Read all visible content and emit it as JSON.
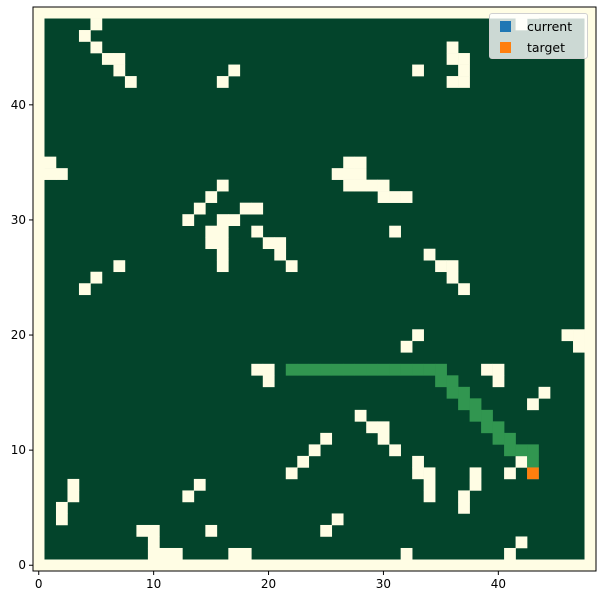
{
  "colors": {
    "background": "#03442b",
    "obstacle": "#fffde4",
    "path": "#319650",
    "current": "#1f77b4",
    "target": "#ff7f0e"
  },
  "legend": {
    "current_label": "current",
    "target_label": "target",
    "placement": "upper-right"
  },
  "chart_data": {
    "type": "heatmap",
    "grid_size": [
      49,
      49
    ],
    "xlim": [
      -0.5,
      48.5
    ],
    "ylim": [
      -0.5,
      48.5
    ],
    "xticks": [
      0,
      10,
      20,
      30,
      40
    ],
    "yticks": [
      0,
      10,
      20,
      30,
      40
    ],
    "obstacles": [
      [
        5,
        47
      ],
      [
        4,
        46
      ],
      [
        5,
        45
      ],
      [
        6,
        44
      ],
      [
        7,
        44
      ],
      [
        7,
        43
      ],
      [
        8,
        42
      ],
      [
        16,
        42
      ],
      [
        17,
        43
      ],
      [
        33,
        43
      ],
      [
        36,
        45
      ],
      [
        36,
        44
      ],
      [
        37,
        44
      ],
      [
        37,
        43
      ],
      [
        36,
        42
      ],
      [
        37,
        42
      ],
      [
        43,
        48
      ],
      [
        42,
        47
      ],
      [
        0,
        35
      ],
      [
        1,
        35
      ],
      [
        0,
        34
      ],
      [
        1,
        34
      ],
      [
        2,
        34
      ],
      [
        27,
        35
      ],
      [
        28,
        35
      ],
      [
        26,
        34
      ],
      [
        27,
        34
      ],
      [
        28,
        34
      ],
      [
        27,
        33
      ],
      [
        28,
        33
      ],
      [
        29,
        33
      ],
      [
        30,
        33
      ],
      [
        30,
        32
      ],
      [
        31,
        32
      ],
      [
        32,
        32
      ],
      [
        16,
        33
      ],
      [
        15,
        32
      ],
      [
        14,
        31
      ],
      [
        13,
        30
      ],
      [
        18,
        31
      ],
      [
        19,
        31
      ],
      [
        16,
        30
      ],
      [
        17,
        30
      ],
      [
        15,
        29
      ],
      [
        16,
        29
      ],
      [
        15,
        28
      ],
      [
        16,
        28
      ],
      [
        16,
        27
      ],
      [
        16,
        26
      ],
      [
        19,
        29
      ],
      [
        20,
        28
      ],
      [
        21,
        28
      ],
      [
        21,
        27
      ],
      [
        22,
        26
      ],
      [
        31,
        29
      ],
      [
        34,
        27
      ],
      [
        35,
        26
      ],
      [
        36,
        26
      ],
      [
        36,
        25
      ],
      [
        37,
        24
      ],
      [
        7,
        26
      ],
      [
        5,
        25
      ],
      [
        4,
        24
      ],
      [
        33,
        20
      ],
      [
        32,
        19
      ],
      [
        46,
        20
      ],
      [
        47,
        20
      ],
      [
        47,
        19
      ],
      [
        19,
        17
      ],
      [
        20,
        17
      ],
      [
        20,
        16
      ],
      [
        39,
        17
      ],
      [
        40,
        17
      ],
      [
        40,
        16
      ],
      [
        44,
        15
      ],
      [
        43,
        14
      ],
      [
        28,
        13
      ],
      [
        29,
        12
      ],
      [
        30,
        12
      ],
      [
        30,
        11
      ],
      [
        31,
        10
      ],
      [
        25,
        11
      ],
      [
        24,
        10
      ],
      [
        23,
        9
      ],
      [
        22,
        8
      ],
      [
        33,
        9
      ],
      [
        33,
        8
      ],
      [
        34,
        8
      ],
      [
        34,
        7
      ],
      [
        34,
        6
      ],
      [
        38,
        8
      ],
      [
        38,
        7
      ],
      [
        37,
        6
      ],
      [
        37,
        5
      ],
      [
        41,
        8
      ],
      [
        42,
        9
      ],
      [
        42,
        2
      ],
      [
        41,
        1
      ],
      [
        3,
        7
      ],
      [
        3,
        6
      ],
      [
        2,
        5
      ],
      [
        2,
        4
      ],
      [
        14,
        7
      ],
      [
        13,
        6
      ],
      [
        26,
        4
      ],
      [
        25,
        3
      ],
      [
        15,
        3
      ],
      [
        9,
        3
      ],
      [
        10,
        3
      ],
      [
        10,
        2
      ],
      [
        10,
        1
      ],
      [
        11,
        1
      ],
      [
        12,
        1
      ],
      [
        17,
        1
      ],
      [
        18,
        1
      ],
      [
        32,
        1
      ]
    ],
    "path": [
      [
        22,
        17
      ],
      [
        23,
        17
      ],
      [
        24,
        17
      ],
      [
        25,
        17
      ],
      [
        26,
        17
      ],
      [
        27,
        17
      ],
      [
        28,
        17
      ],
      [
        29,
        17
      ],
      [
        30,
        17
      ],
      [
        31,
        17
      ],
      [
        32,
        17
      ],
      [
        33,
        17
      ],
      [
        34,
        17
      ],
      [
        35,
        17
      ],
      [
        35,
        16
      ],
      [
        36,
        16
      ],
      [
        36,
        15
      ],
      [
        37,
        15
      ],
      [
        37,
        14
      ],
      [
        38,
        14
      ],
      [
        38,
        13
      ],
      [
        39,
        13
      ],
      [
        39,
        12
      ],
      [
        40,
        12
      ],
      [
        40,
        11
      ],
      [
        41,
        11
      ],
      [
        41,
        10
      ],
      [
        42,
        10
      ],
      [
        43,
        10
      ],
      [
        43,
        9
      ]
    ],
    "current": [
      43,
      8
    ],
    "target": [
      43,
      8
    ]
  }
}
